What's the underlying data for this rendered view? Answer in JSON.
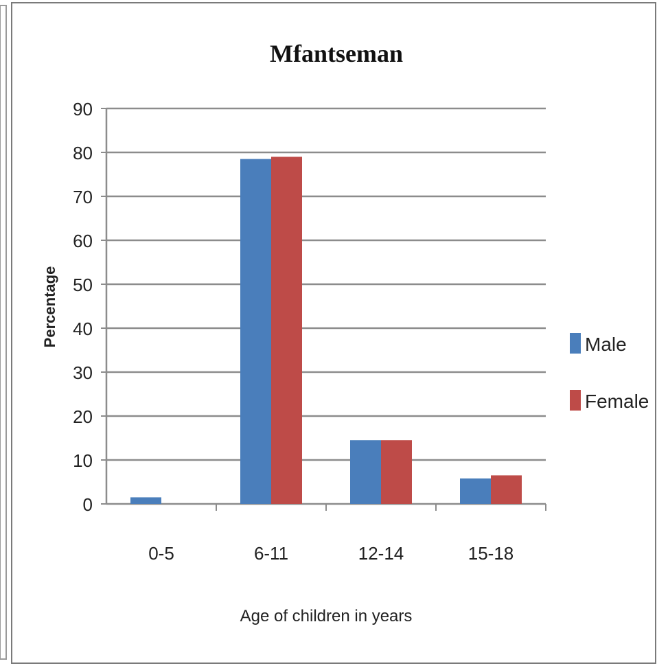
{
  "chart_data": {
    "type": "bar",
    "title": "Mfantseman",
    "xlabel": "Age of children in years",
    "ylabel": "Percentage",
    "categories": [
      "0-5",
      "6-11",
      "12-14",
      "15-18"
    ],
    "series": [
      {
        "name": "Male",
        "values": [
          1.5,
          78.5,
          14.5,
          5.8
        ],
        "color": "#4a7ebb"
      },
      {
        "name": "Female",
        "values": [
          0,
          79,
          14.5,
          6.5
        ],
        "color": "#be4b48"
      }
    ],
    "ylim": [
      0,
      90
    ],
    "yticks": [
      0,
      10,
      20,
      30,
      40,
      50,
      60,
      70,
      80,
      90
    ],
    "grid": true,
    "legend_position": "right"
  }
}
